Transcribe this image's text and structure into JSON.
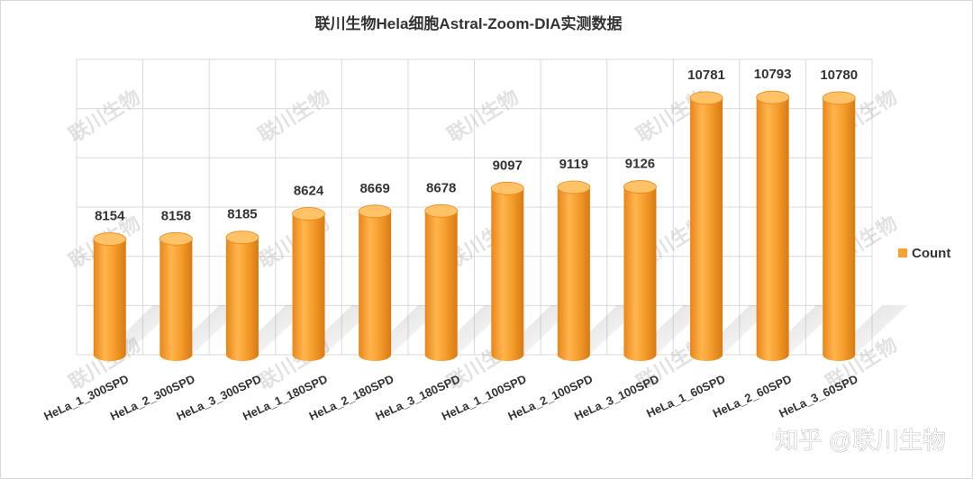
{
  "chart_data": {
    "type": "bar",
    "title": "联川生物Hela细胞Astral-Zoom-DIA实测数据",
    "categories": [
      "HeLa_1_300SPD",
      "HeLa_2_300SPD",
      "HeLa_3_300SPD",
      "HeLa_1_180SPD",
      "HeLa_2_180SPD",
      "HeLa_3_180SPD",
      "HeLa_1_100SPD",
      "HeLa_2_100SPD",
      "HeLa_3_100SPD",
      "HeLa_1_60SPD",
      "HeLa_2_60SPD",
      "HeLa_3_60SPD"
    ],
    "series": [
      {
        "name": "Count",
        "values": [
          8154,
          8158,
          8185,
          8624,
          8669,
          8678,
          9097,
          9119,
          9126,
          10781,
          10793,
          10780
        ]
      }
    ],
    "xlabel": "",
    "ylabel": "",
    "ylim": [
      6000,
      11500
    ],
    "grid": true,
    "legend": "right",
    "colors": {
      "bar": "#F7A130",
      "bar_dark": "#E8861A",
      "bar_light": "#FFC266",
      "grid": "#d9d9d9"
    }
  },
  "watermark": {
    "text": "联川生物"
  },
  "credit": {
    "text": "知乎 @联川生物"
  }
}
